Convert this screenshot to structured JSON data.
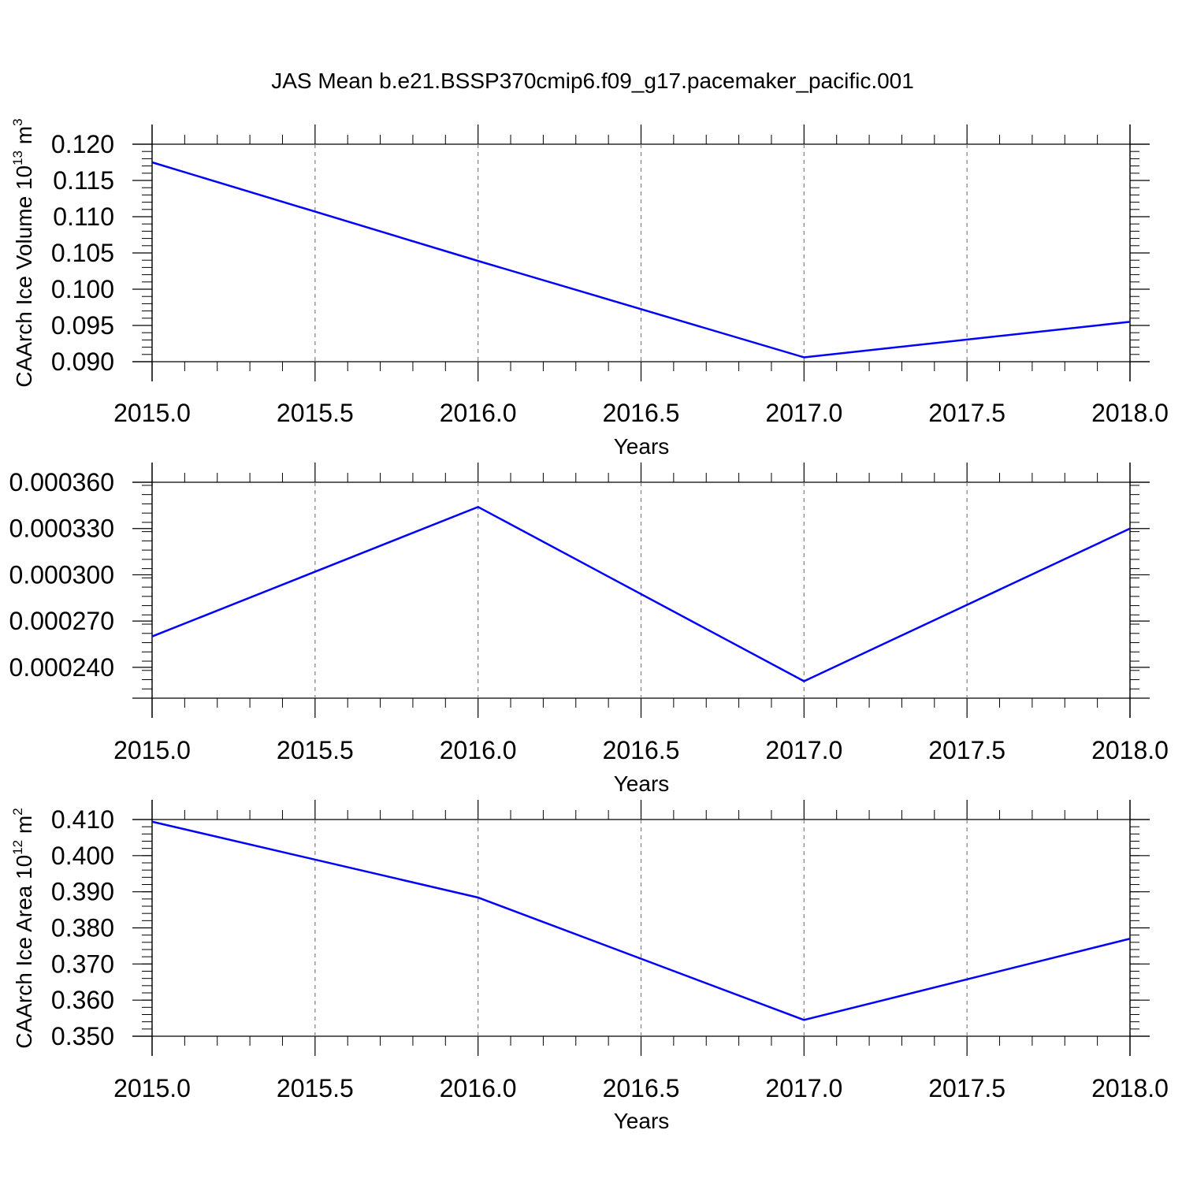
{
  "figure": {
    "title": "JAS Mean b.e21.BSSP370cmip6.f09_g17.pacemaker_pacific.001",
    "line_color": "#0000ff",
    "grid_color": "#808080"
  },
  "chart_data": [
    {
      "type": "line",
      "title": "JAS Mean b.e21.BSSP370cmip6.f09_g17.pacemaker_pacific.001",
      "xlabel": "Years",
      "ylabel": "CAArch Ice Volume 10",
      "ylabel_sup": "13",
      "ylabel_unit": "m",
      "ylabel_unit_sup": "3",
      "x": [
        2015,
        2016,
        2017,
        2018
      ],
      "series": [
        {
          "values": [
            0.1175,
            0.1039,
            0.0906,
            0.0955
          ]
        }
      ],
      "xlim": [
        2015,
        2018
      ],
      "ylim": [
        0.09,
        0.12
      ],
      "xticks": [
        2015.0,
        2015.5,
        2016.0,
        2016.5,
        2017.0,
        2017.5,
        2018.0
      ],
      "xtick_labels": [
        "2015.0",
        "2015.5",
        "2016.0",
        "2016.5",
        "2017.0",
        "2017.5",
        "2018.0"
      ],
      "yticks": [
        0.09,
        0.095,
        0.1,
        0.105,
        0.11,
        0.115,
        0.12
      ],
      "ytick_labels": [
        "0.090",
        "0.095",
        "0.100",
        "0.105",
        "0.110",
        "0.115",
        "0.120"
      ],
      "grid": "x-dashed"
    },
    {
      "type": "line",
      "xlabel": "Years",
      "ylabel": "",
      "x": [
        2015,
        2016,
        2017,
        2018
      ],
      "series": [
        {
          "values": [
            0.00026,
            0.000344,
            0.000231,
            0.00033
          ]
        }
      ],
      "xlim": [
        2015,
        2018
      ],
      "ylim": [
        0.00022,
        0.00036
      ],
      "xticks": [
        2015.0,
        2015.5,
        2016.0,
        2016.5,
        2017.0,
        2017.5,
        2018.0
      ],
      "xtick_labels": [
        "2015.0",
        "2015.5",
        "2016.0",
        "2016.5",
        "2017.0",
        "2017.5",
        "2018.0"
      ],
      "yticks": [
        0.00024,
        0.00027,
        0.0003,
        0.00033,
        0.00036
      ],
      "ytick_labels": [
        "0.000240",
        "0.000270",
        "0.000300",
        "0.000330",
        "0.000360"
      ],
      "grid": "x-dashed"
    },
    {
      "type": "line",
      "xlabel": "Years",
      "ylabel": "CAArch Ice Area 10",
      "ylabel_sup": "12",
      "ylabel_unit": "m",
      "ylabel_unit_sup": "2",
      "x": [
        2015,
        2016,
        2017,
        2018
      ],
      "series": [
        {
          "values": [
            0.4094,
            0.3884,
            0.3545,
            0.377
          ]
        }
      ],
      "xlim": [
        2015,
        2018
      ],
      "ylim": [
        0.35,
        0.41
      ],
      "xticks": [
        2015.0,
        2015.5,
        2016.0,
        2016.5,
        2017.0,
        2017.5,
        2018.0
      ],
      "xtick_labels": [
        "2015.0",
        "2015.5",
        "2016.0",
        "2016.5",
        "2017.0",
        "2017.5",
        "2018.0"
      ],
      "yticks": [
        0.35,
        0.36,
        0.37,
        0.38,
        0.39,
        0.4,
        0.41
      ],
      "ytick_labels": [
        "0.350",
        "0.360",
        "0.370",
        "0.380",
        "0.390",
        "0.400",
        "0.410"
      ],
      "grid": "x-dashed"
    }
  ]
}
